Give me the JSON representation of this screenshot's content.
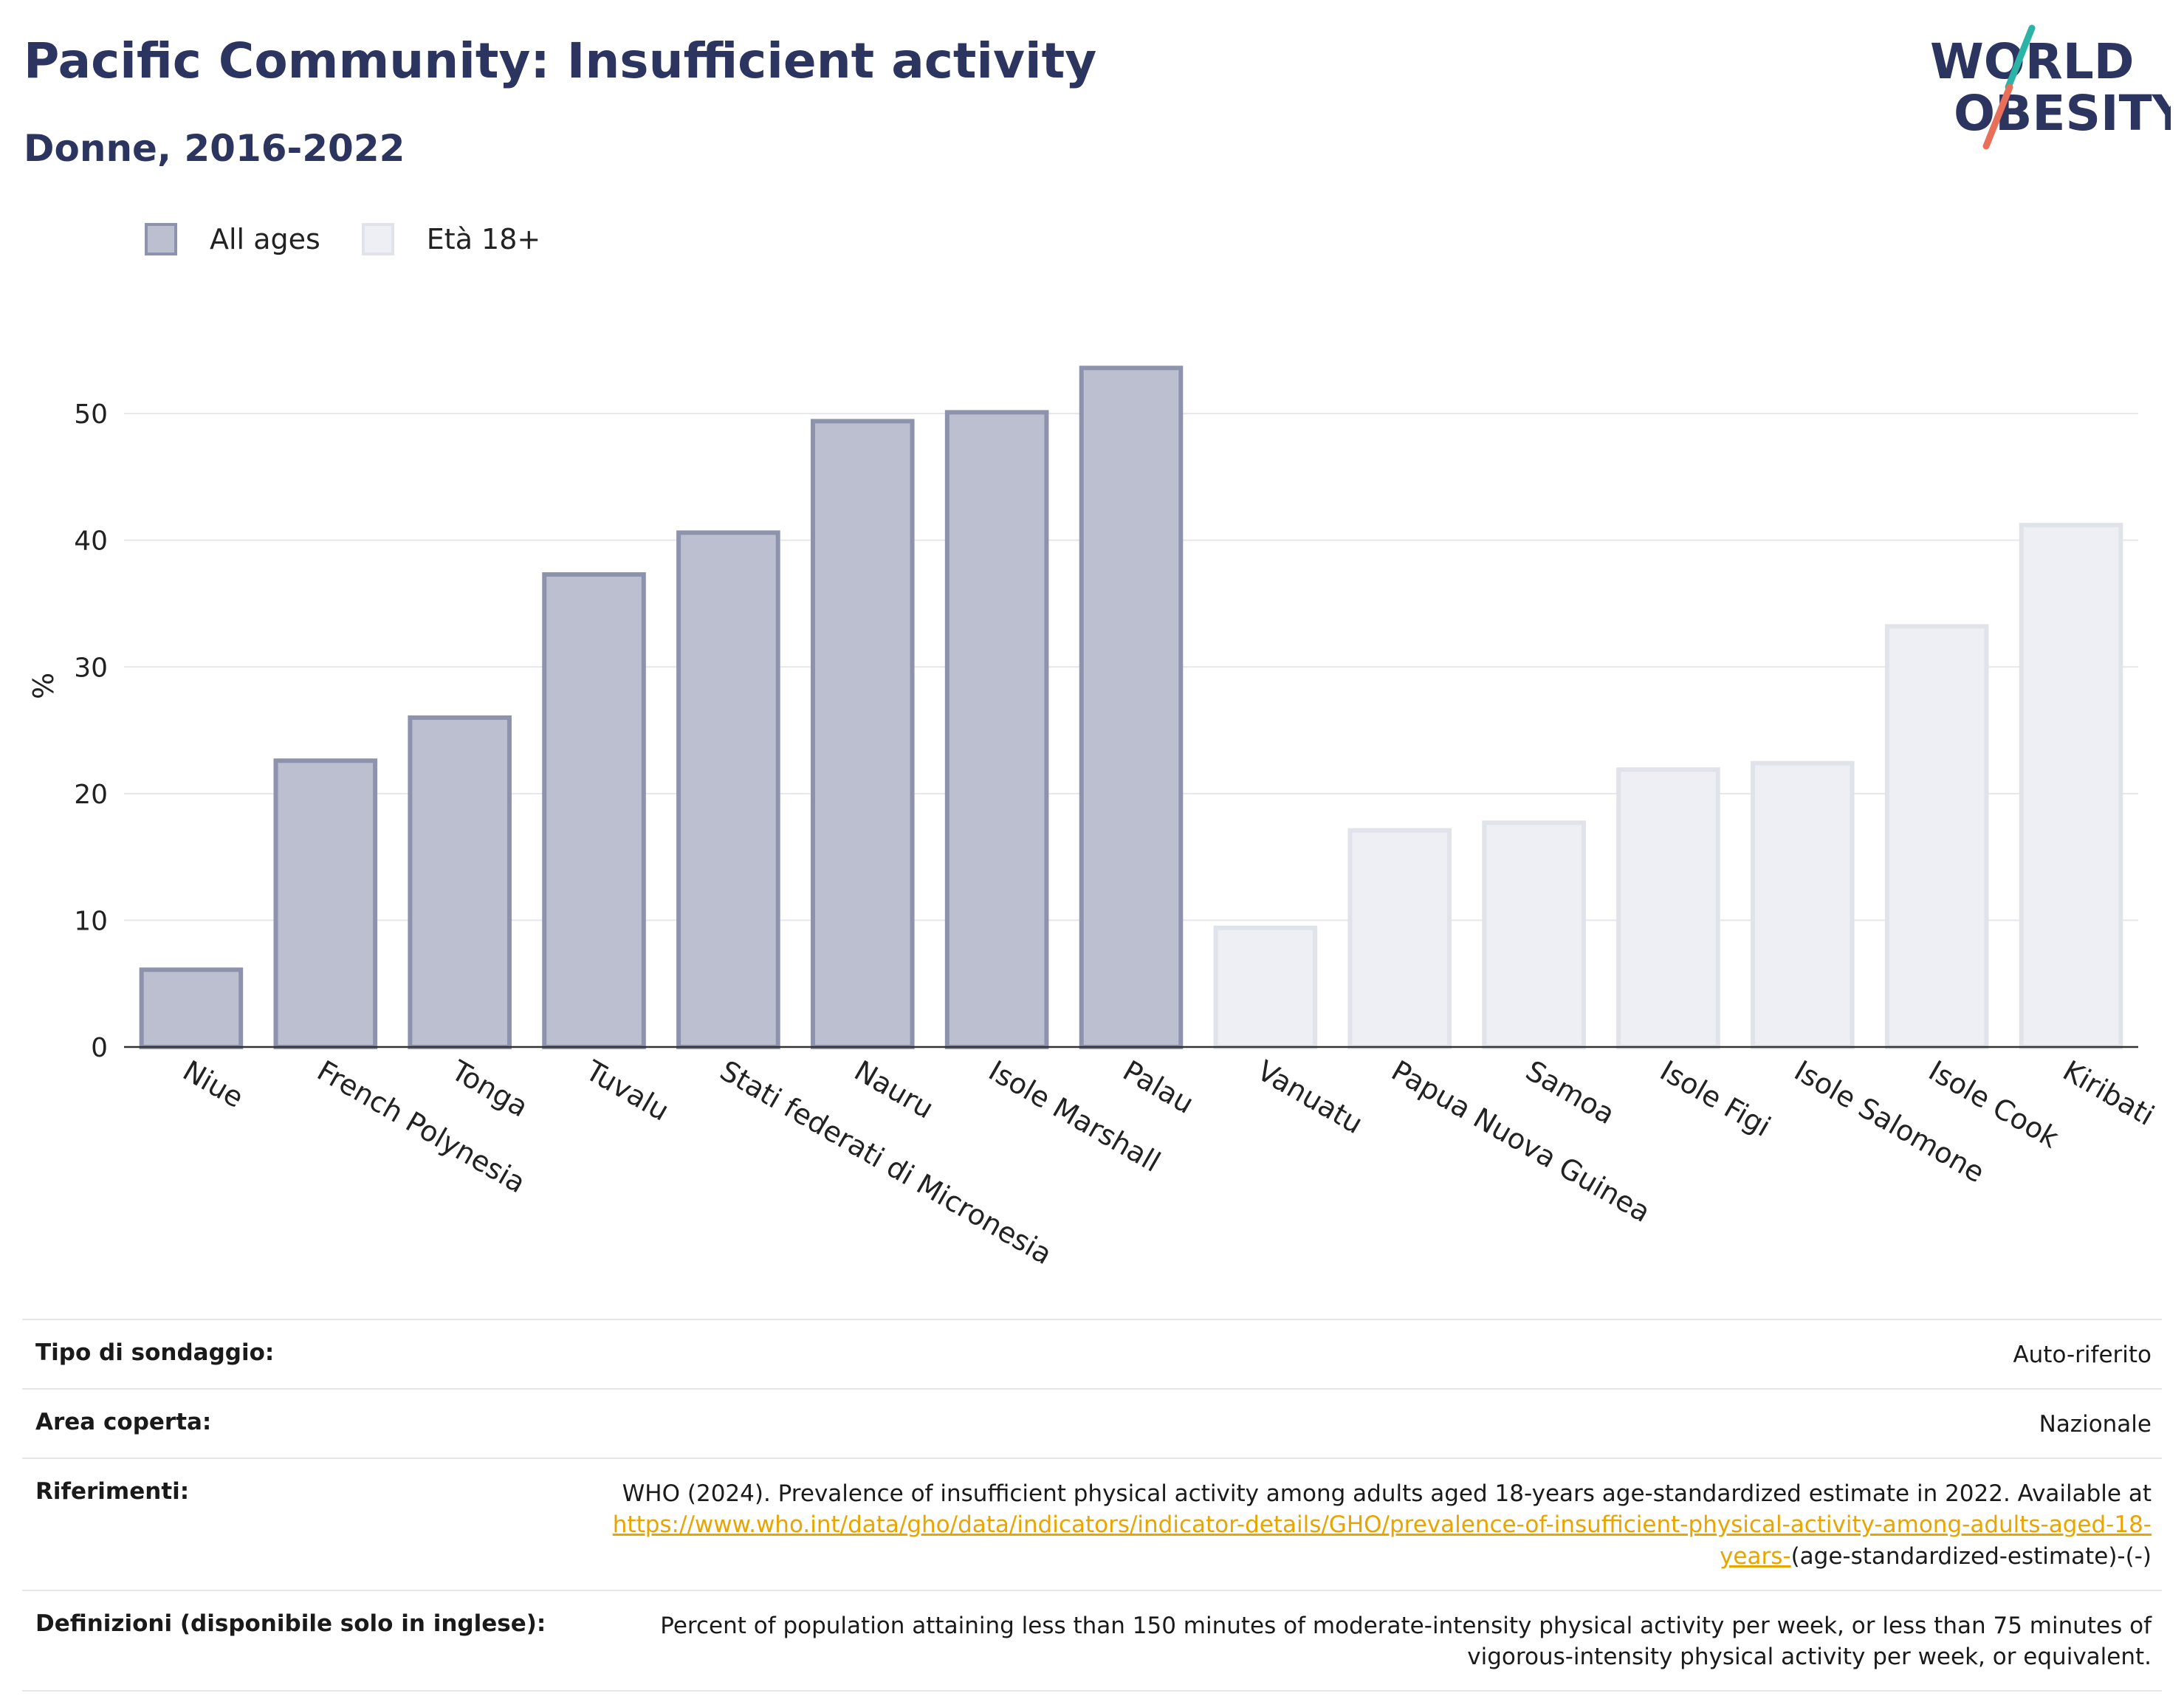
{
  "header": {
    "title": "Pacific Community: Insufficient activity",
    "subtitle": "Donne, 2016-2022"
  },
  "logo": {
    "line1": "WORLD",
    "line2": "OBESITY"
  },
  "colors": {
    "title": "#2b3560",
    "all_ages_fill": "#bcbfcf",
    "all_ages_border": "#8d93ad",
    "age18_fill": "#eeeff4",
    "age18_border": "#e1e3ea",
    "link": "#e8a500"
  },
  "legend": [
    {
      "label": "All ages",
      "series": "all_ages"
    },
    {
      "label": "Età 18+",
      "series": "age18"
    }
  ],
  "chart_data": {
    "type": "bar",
    "ylabel": "%",
    "xlabel": "",
    "ylim": [
      0,
      57
    ],
    "yticks": [
      0,
      10,
      20,
      30,
      40,
      50
    ],
    "grid": true,
    "legend_position": "top-left",
    "categories": [
      "Niue",
      "French Polynesia",
      "Tonga",
      "Tuvalu",
      "Stati federati di Micronesia",
      "Nauru",
      "Isole Marshall",
      "Palau",
      "Vanuatu",
      "Papua Nuova Guinea",
      "Samoa",
      "Isole Figi",
      "Isole Salomone",
      "Isole Cook",
      "Kiribati"
    ],
    "series": [
      {
        "name": "All ages",
        "key": "all_ages",
        "values": [
          6.1,
          22.6,
          26.0,
          37.3,
          40.6,
          49.4,
          50.1,
          53.6,
          null,
          null,
          null,
          null,
          null,
          null,
          null
        ]
      },
      {
        "name": "Età 18+",
        "key": "age18",
        "values": [
          null,
          null,
          null,
          null,
          null,
          null,
          null,
          null,
          9.4,
          17.1,
          17.7,
          21.9,
          22.4,
          33.2,
          41.2
        ]
      }
    ]
  },
  "info": [
    {
      "key": "Tipo di sondaggio:",
      "value": "Auto-riferito"
    },
    {
      "key": "Area coperta:",
      "value": "Nazionale"
    },
    {
      "key": "Riferimenti:",
      "value_pre": "WHO (2024). Prevalence of insufficient physical activity among adults aged 18-years age-standardized estimate in 2022. Available at ",
      "link": "https://www.who.int/data/gho/data/indicators/indicator-details/GHO/prevalence-of-insufficient-physical-activity-among-adults-aged-18-years-",
      "value_post": "(age-standardized-estimate)-(-)"
    },
    {
      "key": "Definizioni (disponibile solo in inglese):",
      "value": "Percent of population attaining less than 150 minutes of moderate-intensity physical activity per week, or less than 75 minutes of vigorous-intensity physical activity per week, or equivalent."
    }
  ]
}
